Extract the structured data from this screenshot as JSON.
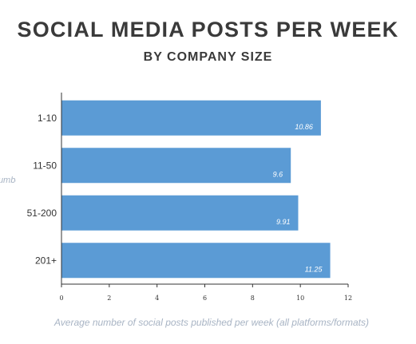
{
  "chart_data": {
    "type": "bar",
    "orientation": "horizontal",
    "title": "SOCIAL MEDIA POSTS PER WEEK",
    "subtitle": "BY COMPANY SIZE",
    "ylabel": "Number of employees",
    "xlabel": "Average number of social posts published per week (all platforms/formats)",
    "categories": [
      "1-10",
      "11-50",
      "51-200",
      "201+"
    ],
    "values": [
      10.86,
      9.6,
      9.91,
      11.25
    ],
    "value_labels": [
      "10.86",
      "9.6",
      "9.91",
      "11.25"
    ],
    "xlim": [
      0,
      12
    ],
    "xticks": [
      0,
      2,
      4,
      6,
      8,
      10,
      12
    ],
    "grid": false,
    "bar_color": "#5b9bd5"
  }
}
